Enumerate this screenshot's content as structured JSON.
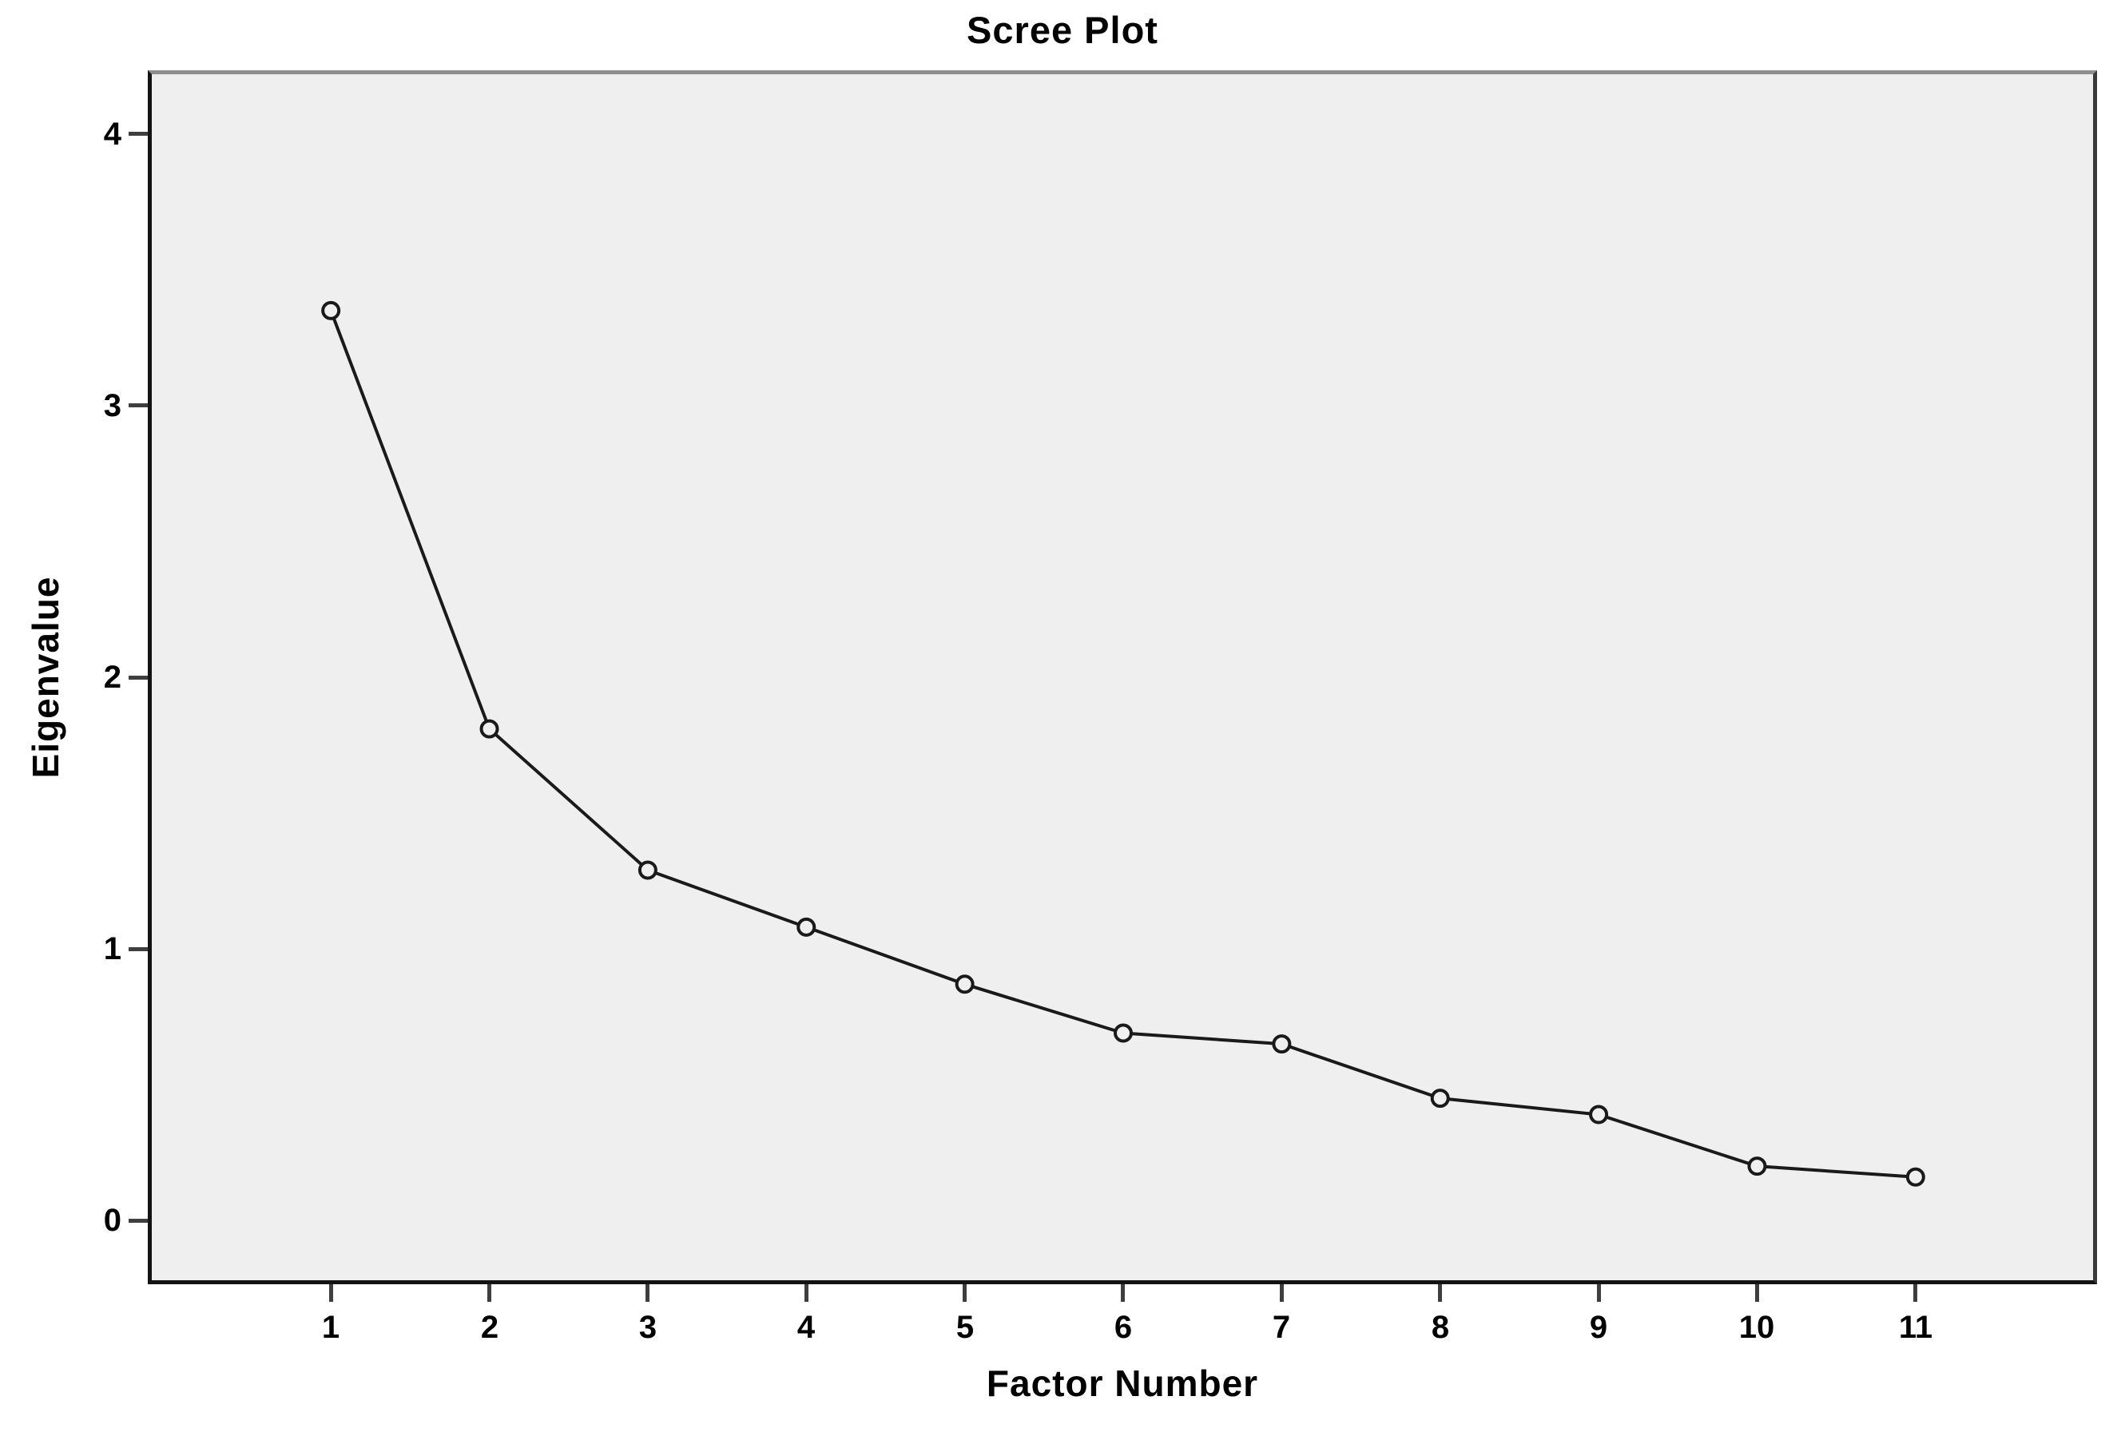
{
  "chart_data": {
    "type": "line",
    "title": "Scree Plot",
    "xlabel": "Factor Number",
    "ylabel": "Eigenvalue",
    "categories": [
      1,
      2,
      3,
      4,
      5,
      6,
      7,
      8,
      9,
      10,
      11
    ],
    "series": [
      {
        "name": "Eigenvalue",
        "values": [
          3.35,
          1.81,
          1.29,
          1.08,
          0.87,
          0.69,
          0.65,
          0.45,
          0.39,
          0.2,
          0.16
        ]
      }
    ],
    "yticks": [
      0,
      1,
      2,
      3,
      4
    ],
    "xlim": [
      -0.13,
      12.12
    ],
    "ylim": [
      -0.22,
      4.22
    ],
    "grid": false,
    "legend": "none",
    "marker": "open-circle",
    "colors": {
      "line": "#1a1a1a",
      "marker_stroke": "#1a1a1a",
      "marker_fill": "#efefef",
      "plot_background": "#efefef",
      "figure_background": "#ffffff",
      "tick": "#3f3f3f",
      "text": "#000000",
      "border_top": "#8e8e8e",
      "border_dark": "#141414"
    }
  }
}
